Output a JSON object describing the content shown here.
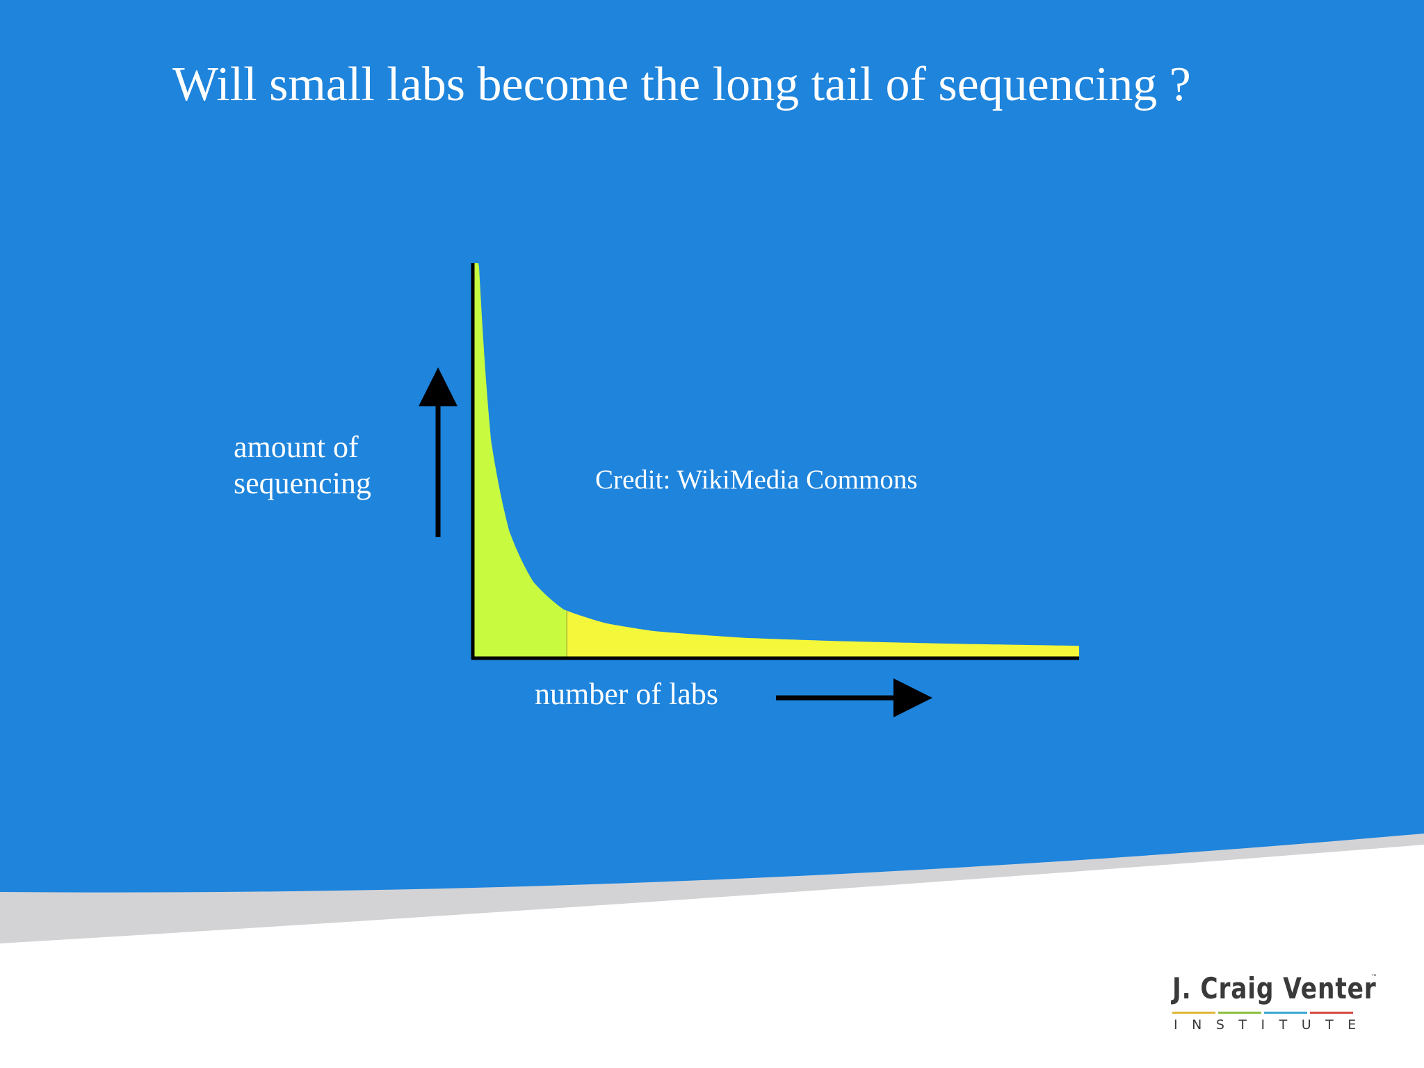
{
  "slide": {
    "title": "Will small labs become the long tail of sequencing ?",
    "credit": "Credit: WikiMedia Commons"
  },
  "chart_data": {
    "type": "area",
    "title": "",
    "xlabel": "number of labs",
    "ylabel_lines": [
      "amount of",
      "sequencing"
    ],
    "curve": "power-law long tail",
    "x": [
      0.01,
      0.03,
      0.06,
      0.1,
      0.15,
      0.22,
      0.3,
      0.45,
      0.6,
      0.8,
      1.0
    ],
    "y": [
      1.0,
      0.55,
      0.32,
      0.19,
      0.12,
      0.085,
      0.065,
      0.048,
      0.04,
      0.033,
      0.028
    ],
    "head_cutoff_x": 0.155,
    "xlim": [
      0,
      1
    ],
    "ylim": [
      0,
      1
    ],
    "grid": false,
    "axis_ticks": false,
    "colors": {
      "head": "#c8fb40",
      "tail": "#f4f73a",
      "axis": "#000000"
    }
  },
  "colors": {
    "background": "#1e84dc",
    "swoosh": "#d3d3d6"
  },
  "logo": {
    "name": "J. Craig Venter",
    "tm": "™",
    "sub": "INSTITUTE",
    "bar_colors": [
      "#e0b63a",
      "#8cbf3f",
      "#3aa6d6",
      "#d44a3e"
    ]
  }
}
